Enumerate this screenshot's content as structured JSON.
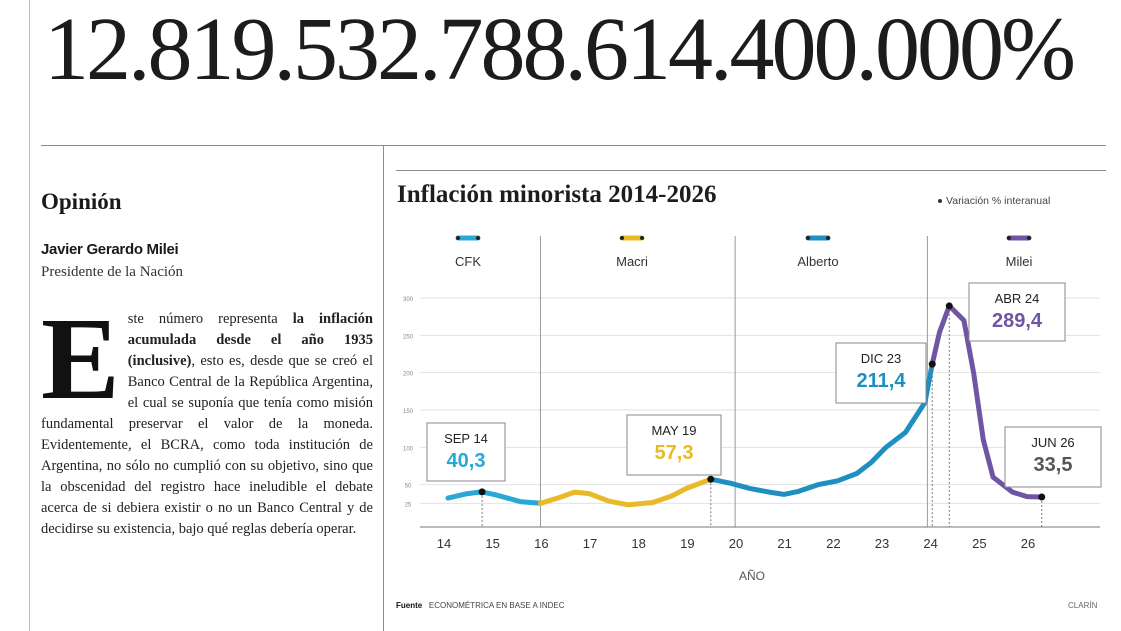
{
  "headline_number": "12.819.532.788.614.400.000%",
  "section": "Opinión",
  "author": {
    "name": "Javier Gerardo Milei",
    "role": "Presidente de la Nación"
  },
  "article": {
    "dropcap": "E",
    "lead_text": "ste número representa ",
    "lead_bold": "la inflación acumulada desde el año 1935 (inclusive)",
    "body": ", esto es, desde que se creó el Banco Central de la República Argentina, el cual se suponía que tenía como misión fundamental preservar el valor de la moneda. Evidentemente, el BCRA, como toda institución de Argentina, no sólo no cumplió con su objetivo, sino que la obscenidad del registro hace ineludible el debate acerca de si debiera existir o no un Banco Central y de decidirse su existencia, bajo qué reglas debería operar."
  },
  "chart_data": {
    "type": "line",
    "title": "Inflación minorista 2014-2026",
    "legend": "Variación % interanual",
    "xlabel": "AÑO",
    "x_ticks": [
      "14",
      "15",
      "16",
      "17",
      "18",
      "19",
      "20",
      "21",
      "22",
      "23",
      "24",
      "25",
      "26"
    ],
    "y_ticks": [
      "25",
      "50",
      "100",
      "150",
      "200",
      "250",
      "300"
    ],
    "ylim": [
      0,
      300
    ],
    "periods": [
      {
        "name": "CFK",
        "color": "#29a7d6"
      },
      {
        "name": "Macri",
        "color": "#e9b928"
      },
      {
        "name": "Alberto",
        "color": "#1f8fc2"
      },
      {
        "name": "Milei",
        "color": "#6f55a3"
      }
    ],
    "series": [
      {
        "color": "#29a7d6",
        "points": [
          [
            2014.0,
            32
          ],
          [
            2014.4,
            38
          ],
          [
            2014.7,
            40.3
          ],
          [
            2015.0,
            36
          ],
          [
            2015.5,
            27
          ],
          [
            2015.9,
            25
          ]
        ]
      },
      {
        "color": "#e9b928",
        "points": [
          [
            2015.9,
            25
          ],
          [
            2016.3,
            33
          ],
          [
            2016.6,
            40
          ],
          [
            2016.9,
            38
          ],
          [
            2017.3,
            28
          ],
          [
            2017.7,
            23
          ],
          [
            2018.2,
            26
          ],
          [
            2018.6,
            35
          ],
          [
            2018.9,
            45
          ],
          [
            2019.4,
            57.3
          ]
        ]
      },
      {
        "color": "#1f8fc2",
        "points": [
          [
            2019.4,
            57.3
          ],
          [
            2019.8,
            52
          ],
          [
            2020.2,
            45
          ],
          [
            2020.6,
            40
          ],
          [
            2020.9,
            37
          ],
          [
            2021.2,
            41
          ],
          [
            2021.6,
            50
          ],
          [
            2022.0,
            55
          ],
          [
            2022.4,
            65
          ],
          [
            2022.7,
            80
          ],
          [
            2023.0,
            100
          ],
          [
            2023.4,
            120
          ],
          [
            2023.8,
            160
          ],
          [
            2023.95,
            211.4
          ]
        ]
      },
      {
        "color": "#6f55a3",
        "points": [
          [
            2023.95,
            211.4
          ],
          [
            2024.1,
            254
          ],
          [
            2024.3,
            289.4
          ],
          [
            2024.6,
            270
          ],
          [
            2024.8,
            200
          ],
          [
            2025.0,
            110
          ],
          [
            2025.2,
            60
          ],
          [
            2025.6,
            40
          ],
          [
            2025.9,
            34
          ],
          [
            2026.2,
            33.5
          ]
        ]
      }
    ],
    "annotations": [
      {
        "label": "SEP 14",
        "value": "40,3",
        "color": "#29a7d6"
      },
      {
        "label": "MAY 19",
        "value": "57,3",
        "color": "#e9b928"
      },
      {
        "label": "DIC 23",
        "value": "211,4",
        "color": "#1f8fc2"
      },
      {
        "label": "ABR 24",
        "value": "289,4",
        "color": "#6f55a3"
      },
      {
        "label": "JUN 26",
        "value": "33,5",
        "color": "#555555"
      }
    ],
    "source_label": "Fuente",
    "source_text": "ECONOMÉTRICA EN BASE A INDEC",
    "credit": "CLARÍN"
  }
}
